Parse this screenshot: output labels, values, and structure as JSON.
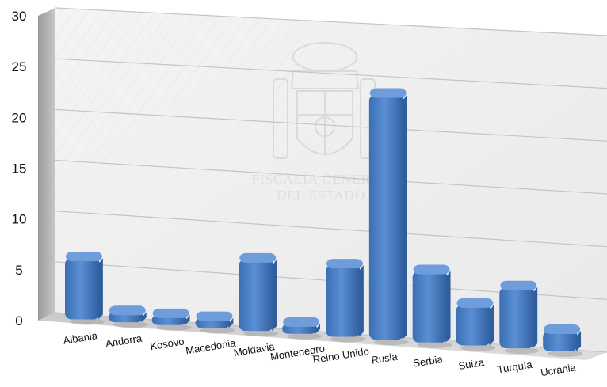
{
  "chart_data": {
    "type": "bar",
    "style": "3d-cylinder-bars",
    "categories": [
      "Albania",
      "Andorra",
      "Kosovo",
      "Macedonia",
      "Moldavia",
      "Montenegro",
      "Reino Unido",
      "Rusia",
      "Serbia",
      "Suiza",
      "Turquía",
      "Ucrania"
    ],
    "values": [
      6,
      1,
      1,
      1,
      7,
      1,
      7,
      24,
      7,
      4,
      6,
      2
    ],
    "ylim": [
      0,
      30
    ],
    "yticks": [
      "0",
      "5",
      "10",
      "15",
      "20",
      "25",
      "30"
    ],
    "grid": true,
    "legend": "none",
    "title": "",
    "xlabel": "",
    "ylabel": "",
    "bar_color": "#4f81c6",
    "bar_top_color": "#6f9ddc",
    "bar_side_color": "#2f5e9e",
    "watermark": [
      "FISCALÍA GENERAL",
      "DEL ESTADO"
    ]
  }
}
